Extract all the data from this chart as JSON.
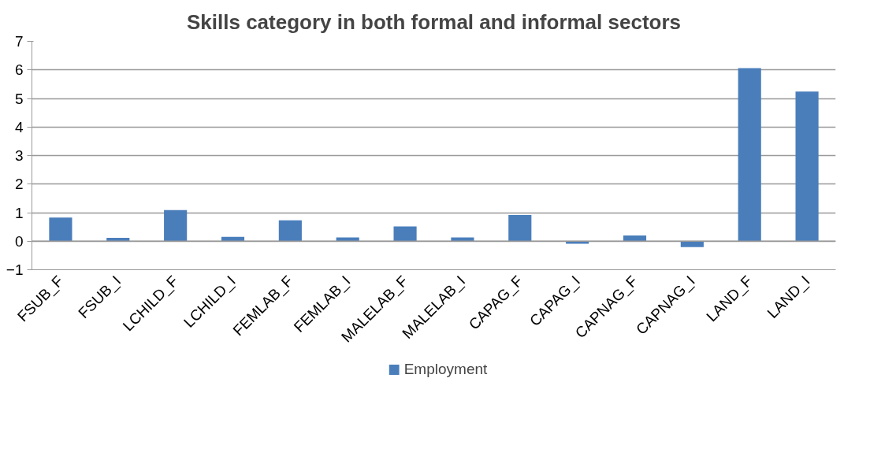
{
  "chart_data": {
    "type": "bar",
    "title": "Skills category in both formal and informal sectors",
    "categories": [
      "FSUB_F",
      "FSUB_I",
      "LCHILD_F",
      "LCHILD_I",
      "FEMLAB_F",
      "FEMLAB_I",
      "MALELAB_F",
      "MALELAB_I",
      "CAPAG_F",
      "CAPAG_I",
      "CAPNAG_F",
      "CAPNAG_I",
      "LAND_F",
      "LAND_I"
    ],
    "series": [
      {
        "name": "Employment",
        "color": "#4a7ebb",
        "values": [
          0.83,
          0.12,
          1.09,
          0.15,
          0.73,
          0.13,
          0.52,
          0.13,
          0.92,
          -0.09,
          0.2,
          -0.21,
          6.06,
          5.24
        ]
      }
    ],
    "ylim": [
      -1,
      7
    ],
    "yticks": [
      -1,
      0,
      1,
      2,
      3,
      4,
      5,
      6,
      7
    ],
    "grid": "y",
    "legend": "bottom"
  }
}
